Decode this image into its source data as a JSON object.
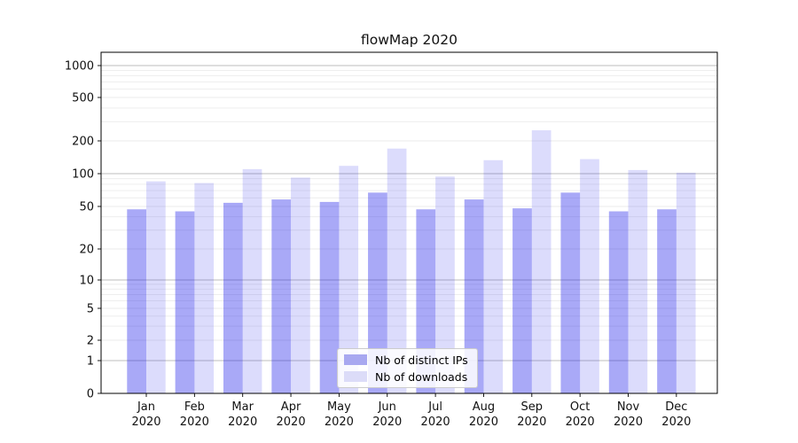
{
  "chart_data": {
    "type": "bar",
    "title": "flowMap 2020",
    "categories": [
      {
        "line1": "Jan",
        "line2": "2020"
      },
      {
        "line1": "Feb",
        "line2": "2020"
      },
      {
        "line1": "Mar",
        "line2": "2020"
      },
      {
        "line1": "Apr",
        "line2": "2020"
      },
      {
        "line1": "May",
        "line2": "2020"
      },
      {
        "line1": "Jun",
        "line2": "2020"
      },
      {
        "line1": "Jul",
        "line2": "2020"
      },
      {
        "line1": "Aug",
        "line2": "2020"
      },
      {
        "line1": "Sep",
        "line2": "2020"
      },
      {
        "line1": "Oct",
        "line2": "2020"
      },
      {
        "line1": "Nov",
        "line2": "2020"
      },
      {
        "line1": "Dec",
        "line2": "2020"
      }
    ],
    "series": [
      {
        "name": "Nb of distinct IPs",
        "color": "rgba(30,30,235,0.38)",
        "swatch_hex": "#a8a8f0",
        "values": [
          47,
          45,
          54,
          58,
          55,
          67,
          47,
          58,
          48,
          67,
          45,
          47
        ]
      },
      {
        "name": "Nb of downloads",
        "color": "rgba(30,30,235,0.155)",
        "swatch_hex": "#dcdcf8",
        "values": [
          85,
          82,
          110,
          92,
          118,
          170,
          94,
          133,
          250,
          136,
          108,
          102
        ]
      }
    ],
    "yscale": "symlog",
    "y_ticks": [
      0,
      1,
      2,
      5,
      10,
      20,
      50,
      100,
      200,
      500,
      1000
    ],
    "ylim": [
      0,
      1200
    ],
    "grid": true,
    "legend_position": "lower center",
    "colors": {
      "major_grid": "#bcbcbc",
      "minor_grid": "#ebebeb",
      "axis": "#000000",
      "text": "#111111"
    }
  }
}
